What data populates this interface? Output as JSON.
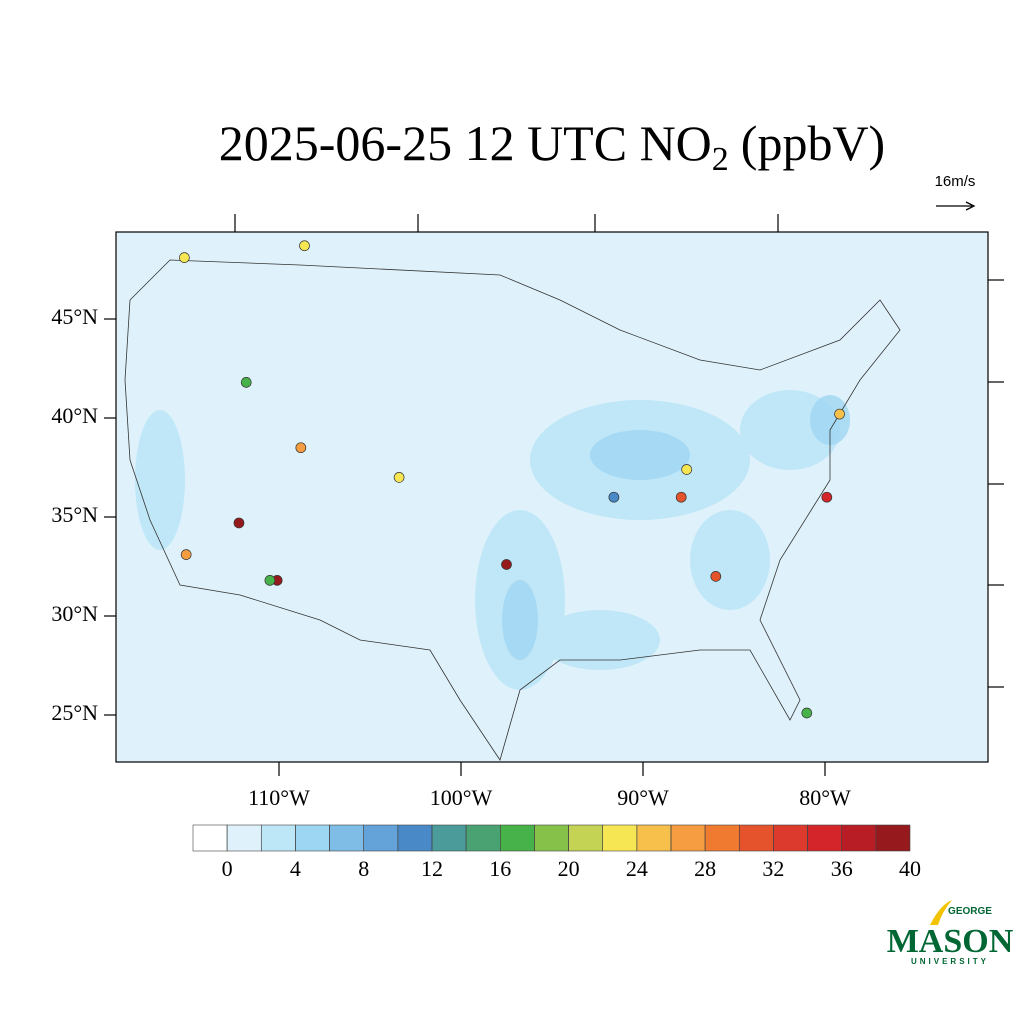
{
  "chart_data": {
    "type": "station-map",
    "title": "2025-06-25 12 UTC NO",
    "title_subscript": "2",
    "title_suffix": "(ppbV)",
    "vector_reference": "16m/s",
    "lat_ticks": [
      {
        "value": 45,
        "label": "45°N"
      },
      {
        "value": 40,
        "label": "40°N"
      },
      {
        "value": 35,
        "label": "35°N"
      },
      {
        "value": 30,
        "label": "30°N"
      },
      {
        "value": 25,
        "label": "25°N"
      }
    ],
    "lon_ticks": [
      {
        "value": -110,
        "label": "110°W"
      },
      {
        "value": -100,
        "label": "100°W"
      },
      {
        "value": -90,
        "label": "90°W"
      },
      {
        "value": -80,
        "label": "80°W"
      }
    ],
    "colorbar": {
      "levels": [
        0,
        2,
        4,
        6,
        8,
        10,
        12,
        14,
        16,
        18,
        20,
        22,
        24,
        26,
        28,
        30,
        32,
        34,
        36,
        38
      ],
      "labeled": [
        0,
        4,
        8,
        12,
        16,
        20,
        24,
        28,
        32,
        36,
        40
      ],
      "colors": [
        "#ffffff",
        "#dff2fb",
        "#bde6f7",
        "#9dd6f2",
        "#7fbde6",
        "#63a3d9",
        "#4a89c8",
        "#4a9b9a",
        "#4aa273",
        "#47b24a",
        "#86c24a",
        "#c4d354",
        "#f7e654",
        "#f6c04a",
        "#f59d40",
        "#f07a30",
        "#e5532d",
        "#dc3a2c",
        "#d4252b",
        "#b81c24",
        "#961a1d"
      ]
    },
    "stations": {
      "lon": [
        -110.1,
        -112.2,
        -110.5,
        -108.8,
        -87.9,
        -86.0,
        -79.9,
        -79.2,
        -115.1,
        -97.5,
        -87.6,
        -103.4,
        -111.8,
        -81.0,
        -91.6,
        -115.2,
        -108.6
      ],
      "lat": [
        31.8,
        34.7,
        31.8,
        38.5,
        36.0,
        32.0,
        36.0,
        40.2,
        33.1,
        32.6,
        37.4,
        37.0,
        41.8,
        25.1,
        36.0,
        48.1,
        48.7
      ],
      "values": [
        40,
        38,
        16,
        26,
        30,
        30,
        34,
        24,
        26,
        38,
        22,
        22,
        16,
        16,
        10,
        22,
        22
      ]
    },
    "logo": {
      "top": "GEORGE",
      "main": "MASON",
      "bottom": "UNIVERSITY"
    }
  }
}
